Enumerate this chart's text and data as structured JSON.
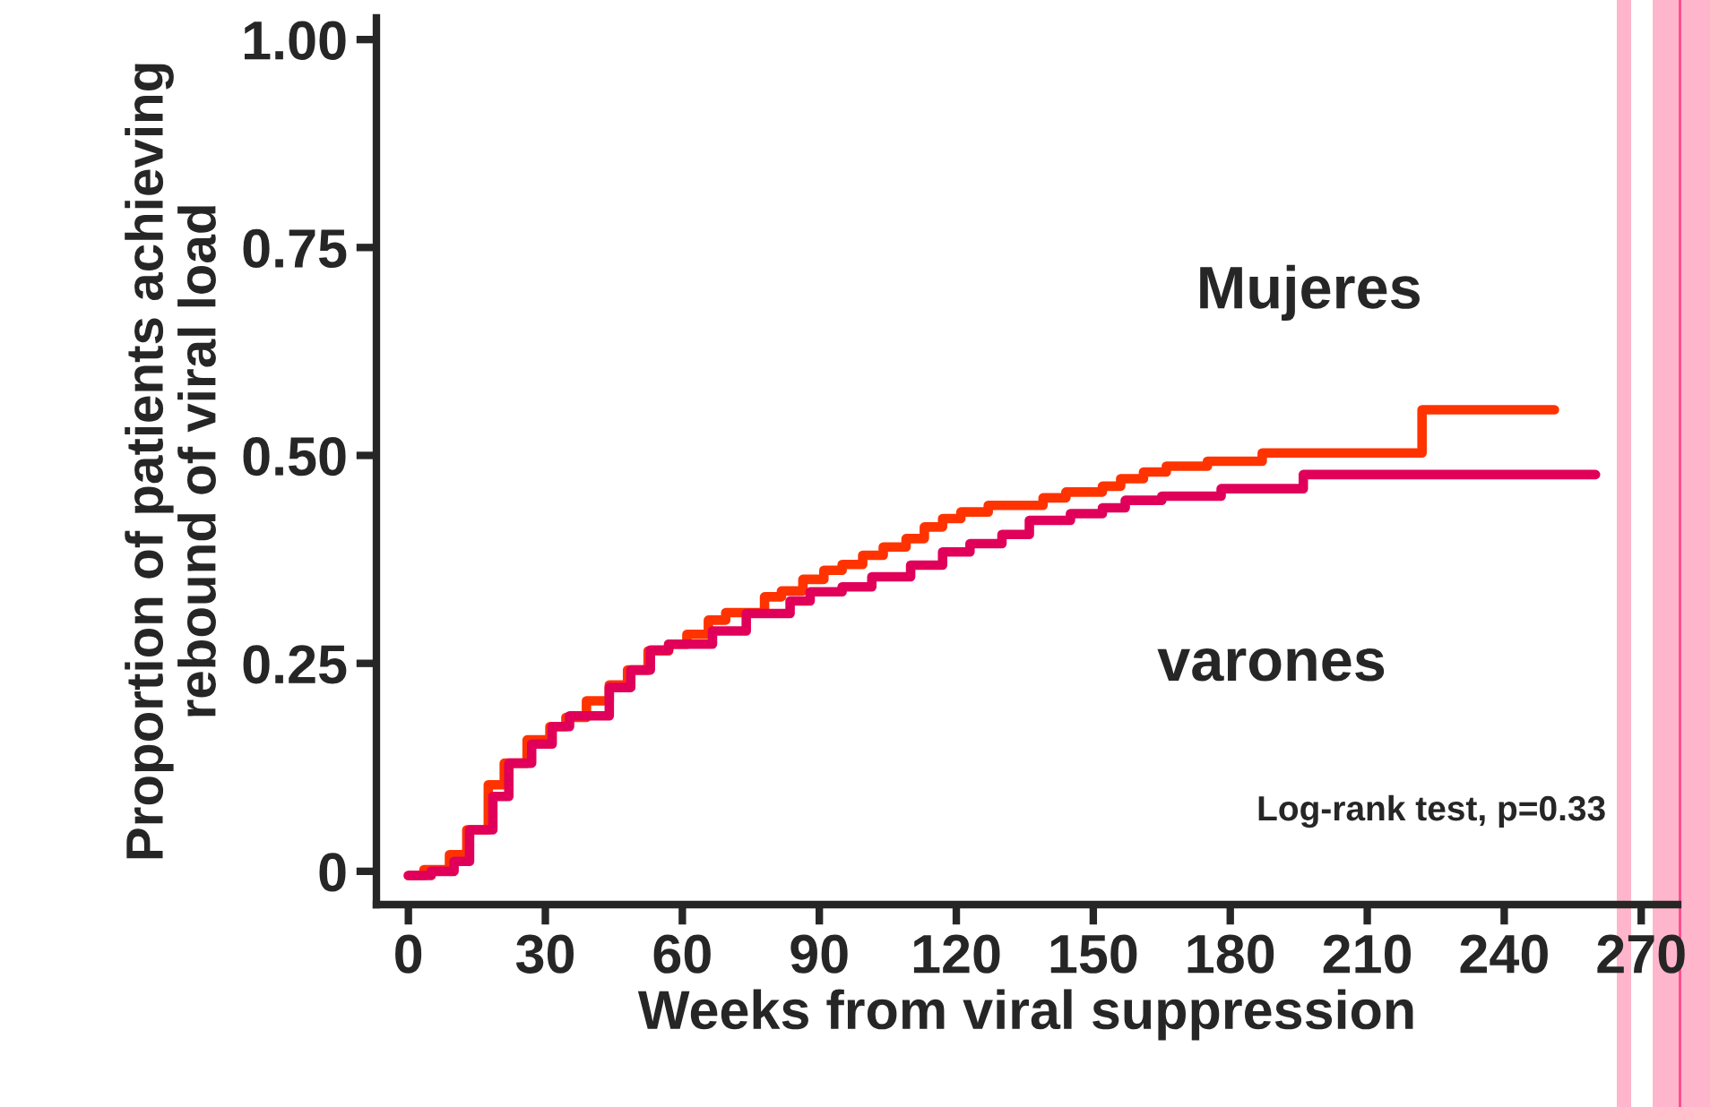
{
  "chart_data": {
    "type": "step",
    "xlabel": "Weeks from viral suppression",
    "ylabel": "Proportion of patients achieving\nrebound of viral load",
    "xlim": [
      -7,
      278
    ],
    "ylim": [
      -0.04,
      1.026
    ],
    "xticks": [
      0,
      30,
      60,
      90,
      120,
      150,
      180,
      210,
      240,
      270
    ],
    "yticks": [
      {
        "value": 0,
        "label": "0"
      },
      {
        "value": 0.25,
        "label": "0.25"
      },
      {
        "value": 0.5,
        "label": "0.50"
      },
      {
        "value": 0.75,
        "label": "0.75"
      },
      {
        "value": 1.0,
        "label": "1.00"
      }
    ],
    "grid": false,
    "legend": false,
    "annotations": [
      "Log-rank test, p=0.33"
    ],
    "series": [
      {
        "name": "Mujeres",
        "color": "#ff3300",
        "x": [
          0,
          3.4,
          9,
          12.8,
          17.5,
          21,
          26,
          31,
          34.5,
          39,
          44,
          48,
          52.5,
          57,
          61,
          65.7,
          69.5,
          78,
          81.7,
          86.4,
          91,
          95,
          99.5,
          104,
          109,
          113,
          117,
          121,
          127,
          139,
          144,
          152,
          156,
          161,
          166,
          175,
          187,
          222,
          251
        ],
        "values": [
          -0.005,
          0.002,
          0.02,
          0.05,
          0.104,
          0.13,
          0.158,
          0.174,
          0.185,
          0.205,
          0.224,
          0.242,
          0.265,
          0.273,
          0.285,
          0.302,
          0.311,
          0.33,
          0.337,
          0.351,
          0.362,
          0.369,
          0.38,
          0.39,
          0.4,
          0.414,
          0.424,
          0.432,
          0.44,
          0.449,
          0.456,
          0.463,
          0.472,
          0.48,
          0.487,
          0.493,
          0.503,
          0.555,
          0.555
        ]
      },
      {
        "name": "varones",
        "color": "#e0005a",
        "x": [
          0,
          5,
          10,
          13.4,
          18.5,
          22,
          27,
          31.5,
          35.3,
          44,
          48.7,
          53,
          57,
          66.6,
          74,
          83.6,
          88,
          95,
          101.5,
          110,
          117,
          123,
          130,
          136,
          145,
          152,
          157,
          165,
          178,
          196,
          260
        ],
        "values": [
          -0.005,
          0,
          0.012,
          0.05,
          0.09,
          0.13,
          0.153,
          0.174,
          0.187,
          0.221,
          0.242,
          0.266,
          0.273,
          0.289,
          0.31,
          0.325,
          0.336,
          0.342,
          0.354,
          0.368,
          0.384,
          0.394,
          0.405,
          0.422,
          0.43,
          0.437,
          0.446,
          0.451,
          0.46,
          0.477,
          0.477
        ]
      }
    ]
  }
}
